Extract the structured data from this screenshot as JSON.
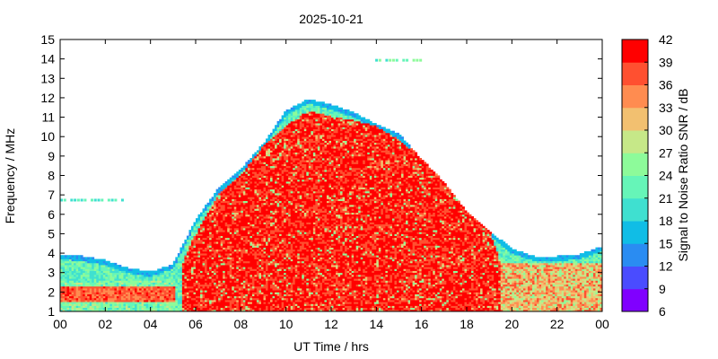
{
  "chart_data": {
    "type": "heatmap",
    "title": "2025-10-21",
    "xlabel": "UT Time / hrs",
    "ylabel": "Frequency / MHz",
    "colorbar_label": "Signal to Noise Ratio SNR / dB",
    "xlim": [
      0,
      24
    ],
    "ylim": [
      1,
      15
    ],
    "x_ticks": [
      "00",
      "02",
      "04",
      "06",
      "08",
      "10",
      "12",
      "14",
      "16",
      "18",
      "20",
      "22",
      "00"
    ],
    "y_ticks": [
      "1",
      "2",
      "3",
      "4",
      "5",
      "6",
      "7",
      "8",
      "9",
      "10",
      "11",
      "12",
      "13",
      "14",
      "15"
    ],
    "colorbar_ticks": [
      "6",
      "9",
      "12",
      "15",
      "18",
      "21",
      "24",
      "27",
      "30",
      "33",
      "36",
      "39",
      "42"
    ],
    "colorbar_range": [
      6,
      42
    ],
    "colorbar_colors": [
      "#8000ff",
      "#4a4cff",
      "#2a8cf2",
      "#10bde6",
      "#3fe0d0",
      "#66f5b8",
      "#8dfb9a",
      "#c6e888",
      "#f2c070",
      "#ff8c50",
      "#ff5030",
      "#ff0000"
    ],
    "background_max_freq_profile": {
      "hours": [
        0,
        1,
        2,
        3,
        4,
        5,
        6,
        7,
        8,
        9,
        10,
        11,
        12,
        13,
        14,
        15,
        16,
        17,
        18,
        19,
        20,
        21,
        22,
        23,
        24
      ],
      "mhz": [
        3.9,
        3.8,
        3.6,
        3.2,
        3.0,
        3.4,
        5.7,
        7.3,
        8.3,
        9.6,
        11.3,
        11.9,
        11.6,
        11.2,
        10.6,
        10.1,
        8.8,
        7.6,
        6.1,
        5.1,
        4.2,
        3.8,
        3.8,
        3.9,
        4.3
      ]
    },
    "strong_region_max_freq_profile": {
      "hours": [
        5.3,
        6,
        7,
        8,
        9,
        10,
        11,
        12,
        13,
        14,
        15,
        16,
        17,
        18,
        19,
        19.5
      ],
      "mhz": [
        3.2,
        5.0,
        7.0,
        8.0,
        9.5,
        10.5,
        11.3,
        11.0,
        10.8,
        10.5,
        9.8,
        8.9,
        7.8,
        6.6,
        5.2,
        3.5
      ]
    },
    "annotations": [
      {
        "hour_range": [
          0,
          2.8
        ],
        "mhz": 6.7,
        "snr_db": 18
      },
      {
        "hour_range": [
          13.8,
          16
        ],
        "mhz": 13.9,
        "snr_db": 20
      }
    ]
  }
}
